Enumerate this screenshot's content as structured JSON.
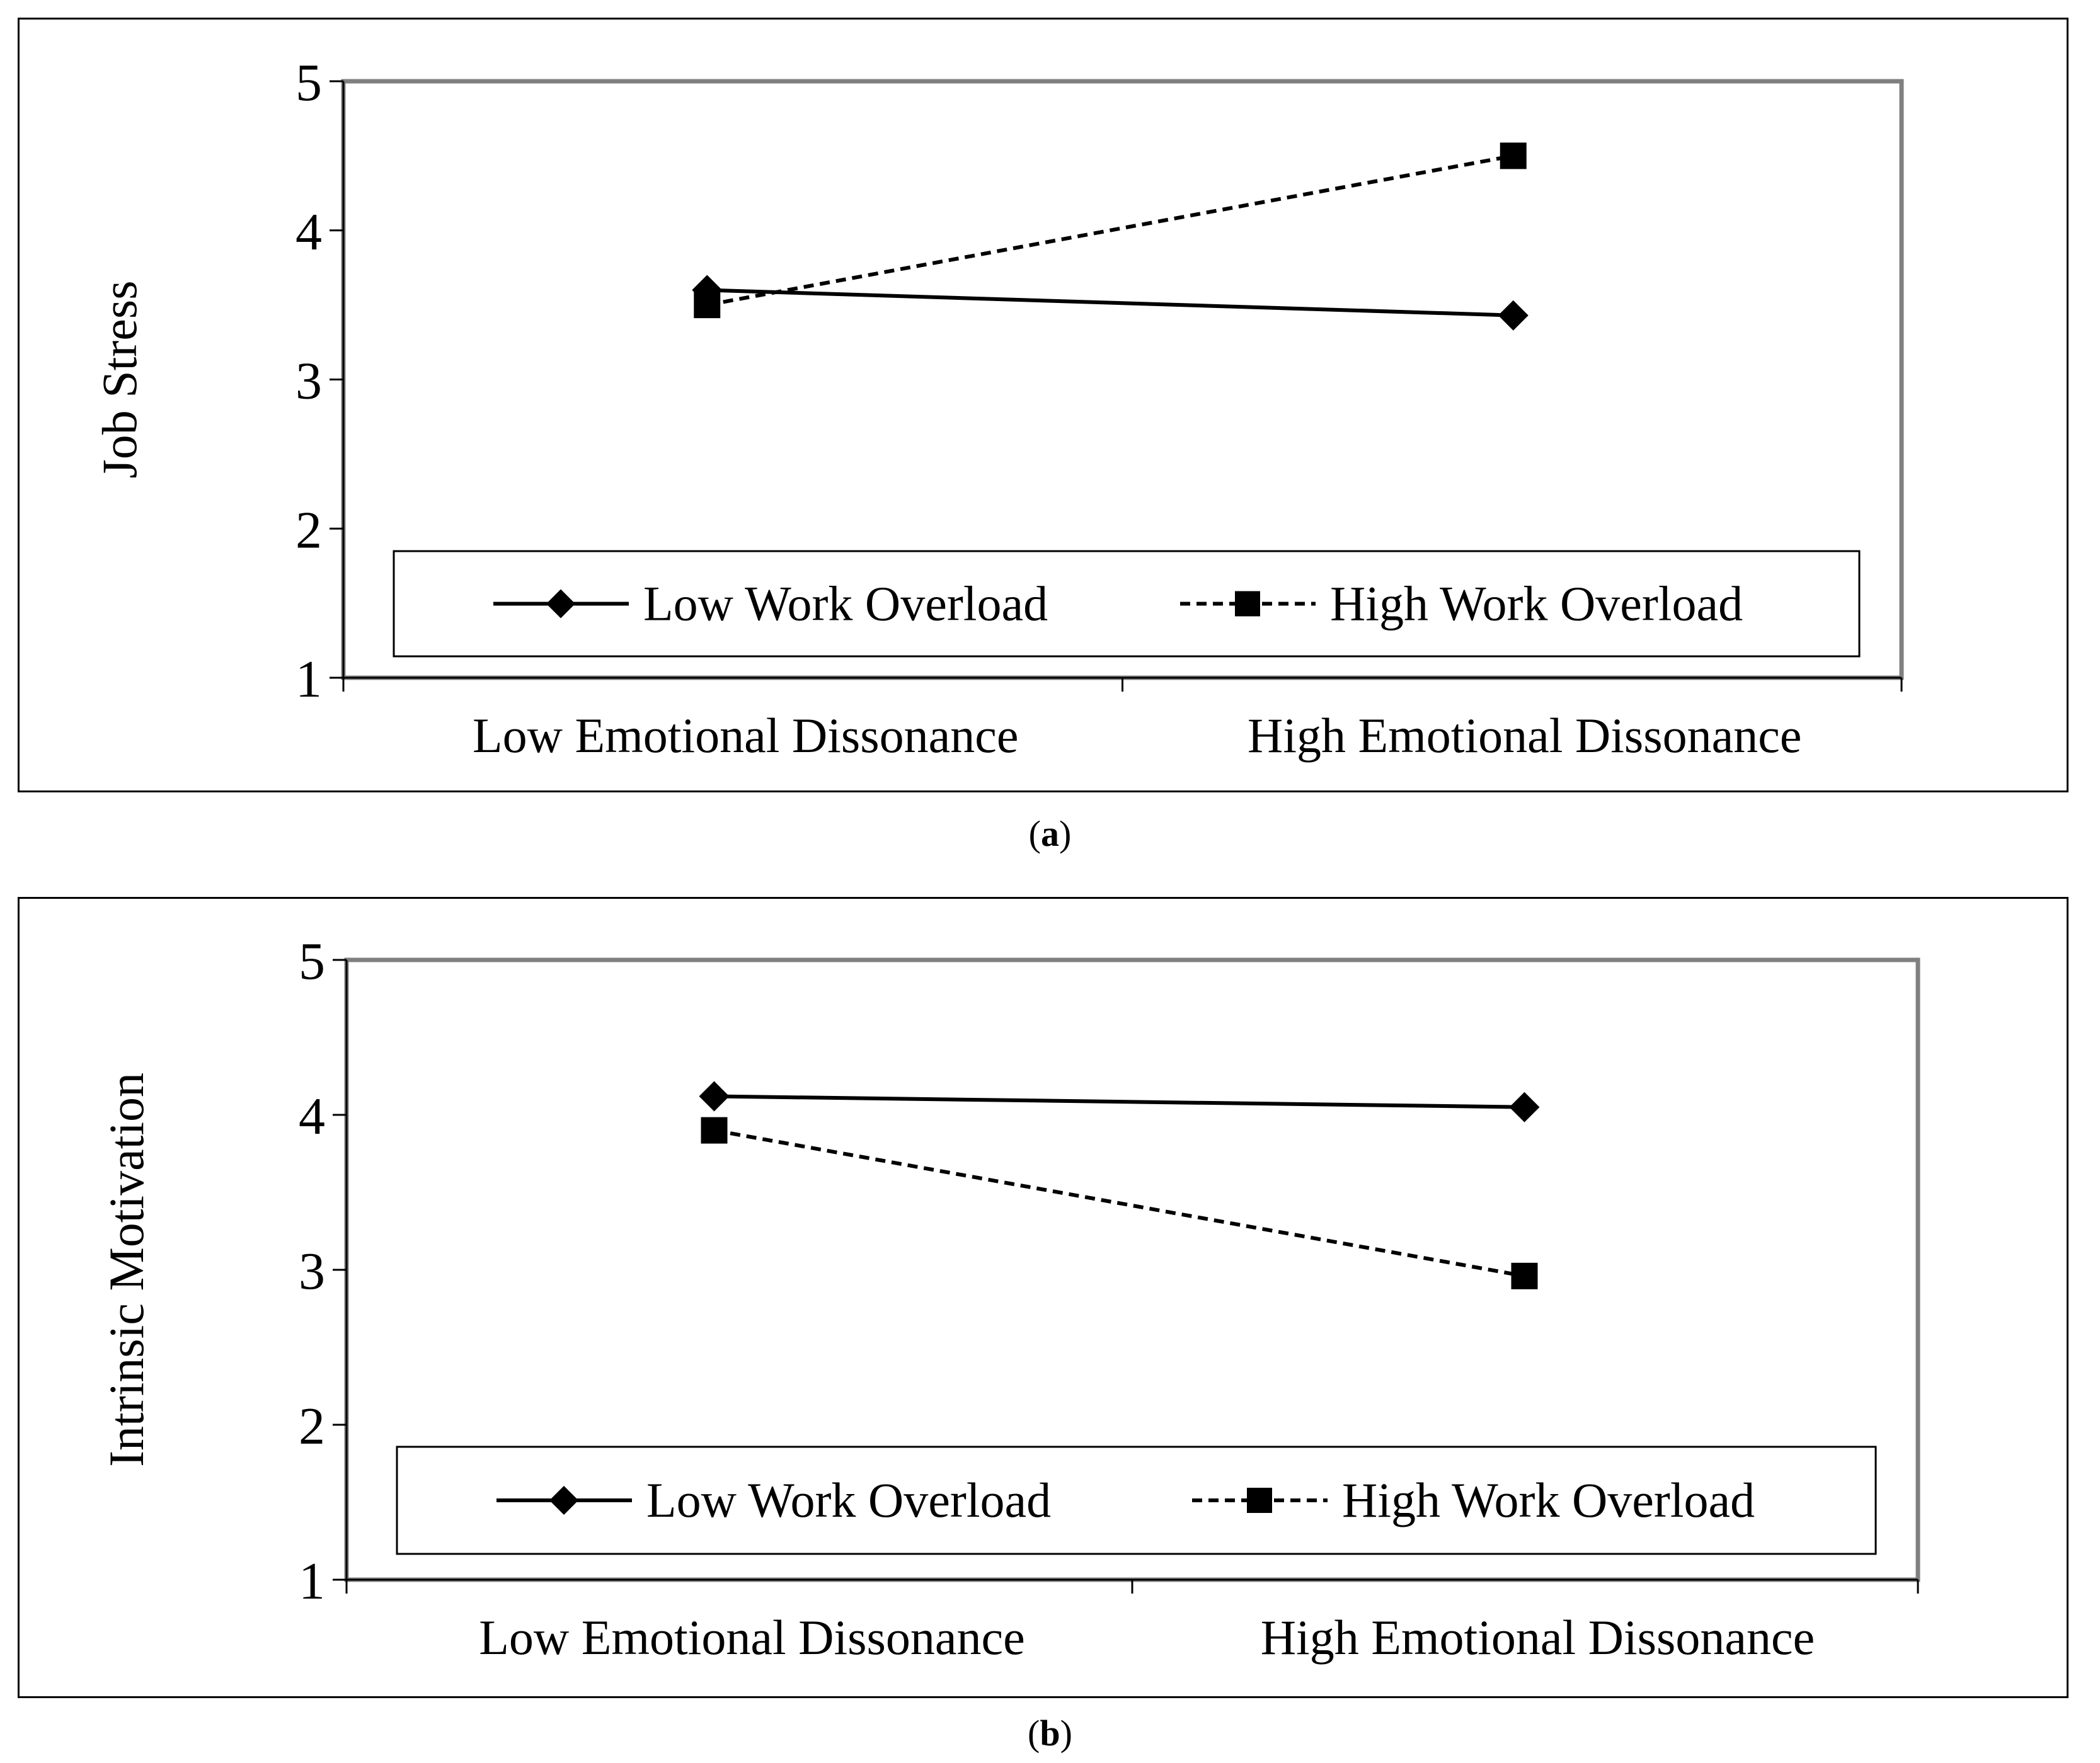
{
  "chart_data": [
    {
      "type": "line",
      "panel_label": "a",
      "ylabel": "Job Stress",
      "xlabel": "",
      "categories": [
        "Low Emotional Dissonance",
        "High Emotional Dissonance"
      ],
      "ylim": [
        1,
        5
      ],
      "yticks": [
        "1",
        "2",
        "3",
        "4",
        "5"
      ],
      "legend_position": "bottom",
      "series": [
        {
          "name": "Low Work Overload",
          "values": [
            3.6,
            3.43
          ],
          "style": "solid",
          "marker": "diamond"
        },
        {
          "name": "High Work Overload",
          "values": [
            3.5,
            4.5
          ],
          "style": "dashed",
          "marker": "square"
        }
      ]
    },
    {
      "type": "line",
      "panel_label": "b",
      "ylabel": "Intrinsic Motivation",
      "xlabel": "",
      "categories": [
        "Low Emotional Dissonance",
        "High Emotional Dissonance"
      ],
      "ylim": [
        1,
        5
      ],
      "yticks": [
        "1",
        "2",
        "3",
        "4",
        "5"
      ],
      "legend_position": "bottom",
      "series": [
        {
          "name": "Low Work Overload",
          "values": [
            4.12,
            4.05
          ],
          "style": "solid",
          "marker": "diamond"
        },
        {
          "name": "High Work Overload",
          "values": [
            3.9,
            2.96
          ],
          "style": "dashed",
          "marker": "square"
        }
      ]
    }
  ],
  "colors": {
    "line": "#000000",
    "frame": "#808080",
    "background": "#ffffff"
  }
}
